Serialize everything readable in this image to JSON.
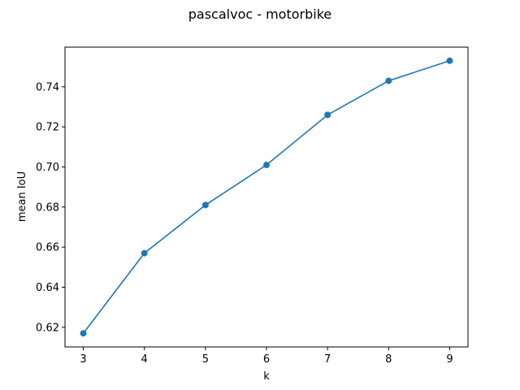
{
  "chart_data": {
    "type": "line",
    "title": "pascalvoc - motorbike",
    "xlabel": "k",
    "ylabel": "mean IoU",
    "x": [
      3,
      4,
      5,
      6,
      7,
      8,
      9
    ],
    "series": [
      {
        "values": [
          0.617,
          0.657,
          0.681,
          0.701,
          0.726,
          0.743,
          0.753
        ]
      }
    ],
    "xlim": [
      2.7,
      9.3
    ],
    "ylim": [
      0.6102,
      0.7598
    ],
    "xticks": [
      3,
      4,
      5,
      6,
      7,
      8,
      9
    ],
    "xtick_labels": [
      "3",
      "4",
      "5",
      "6",
      "7",
      "8",
      "9"
    ],
    "yticks": [
      0.62,
      0.64,
      0.66,
      0.68,
      0.7,
      0.72,
      0.74
    ],
    "ytick_labels": [
      "0.62",
      "0.64",
      "0.66",
      "0.68",
      "0.70",
      "0.72",
      "0.74"
    ],
    "grid": false,
    "marker": "circle",
    "line_color": "#1f77b4"
  }
}
